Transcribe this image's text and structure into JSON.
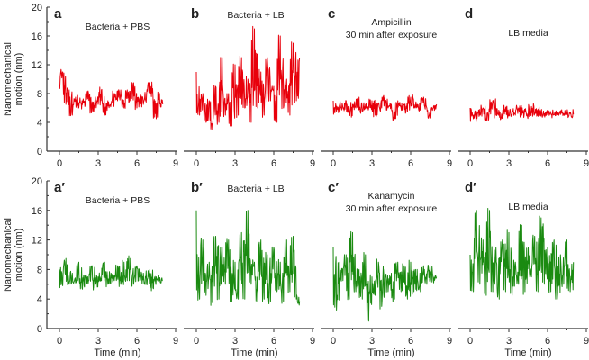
{
  "chart_data": [
    {
      "type": "line",
      "panel_label": "a",
      "title": "Bacteria + PBS",
      "color": "#e8000b",
      "xlim": [
        0,
        9
      ],
      "ylim": [
        0,
        20
      ],
      "xticks": [
        "0",
        "3",
        "6",
        "9"
      ],
      "yticks": [
        "0",
        "4",
        "8",
        "12",
        "16",
        "20"
      ],
      "ylabel": [
        "Nanomechanical",
        "motion (nm)"
      ],
      "xlabel": "",
      "x_step": 0.25,
      "values": [
        9,
        11,
        6.5,
        8.5,
        5,
        7.5,
        6,
        7,
        6.5,
        8,
        5.5,
        7,
        6.5,
        8.5,
        5,
        7,
        6.5,
        8,
        7,
        8.5,
        6,
        8.5,
        7,
        9.5,
        6,
        7.5,
        6.5,
        8,
        9.5,
        7.5,
        4.5,
        8,
        6.5
      ]
    },
    {
      "type": "line",
      "panel_label": "b",
      "title": "Bacteria + LB",
      "color": "#e8000b",
      "xlim": [
        0,
        9
      ],
      "ylim": [
        0,
        20
      ],
      "xticks": [
        "0",
        "3",
        "6",
        "9"
      ],
      "xlabel": "",
      "x_step": 0.25,
      "values": [
        11,
        5,
        8,
        4,
        7,
        3,
        9,
        4,
        13,
        5,
        8,
        3.5,
        12,
        5,
        13,
        6,
        10,
        4,
        17,
        6,
        11,
        5,
        13,
        7,
        9,
        4,
        16,
        6,
        10,
        5,
        15,
        7,
        13
      ]
    },
    {
      "type": "line",
      "panel_label": "c",
      "title": "Ampicillin\n30 min after exposure",
      "title_lines": [
        "Ampicillin",
        "30 min after exposure"
      ],
      "color": "#e8000b",
      "xlim": [
        0,
        9
      ],
      "ylim": [
        0,
        20
      ],
      "xticks": [
        "0",
        "3",
        "6",
        "9"
      ],
      "xlabel": "",
      "x_step": 0.25,
      "values": [
        7,
        5.5,
        6.5,
        6,
        7,
        5,
        6.5,
        6,
        7.5,
        5.5,
        6.5,
        6,
        7,
        5,
        6.5,
        6,
        7.5,
        6,
        6.5,
        4.5,
        7,
        6,
        6.5,
        5.5,
        7.5,
        6,
        6.5,
        6,
        7.5,
        6,
        4.5,
        6,
        6.5
      ]
    },
    {
      "type": "line",
      "panel_label": "d",
      "title": "LB media",
      "color": "#e8000b",
      "xlim": [
        0,
        9
      ],
      "ylim": [
        0,
        20
      ],
      "xticks": [
        "0",
        "3",
        "6",
        "9"
      ],
      "xlabel": "",
      "x_step": 0.25,
      "values": [
        6,
        4.5,
        5.5,
        5,
        6,
        4.5,
        5.5,
        7,
        5,
        5.5,
        4.8,
        6,
        5,
        5.5,
        5,
        6,
        5,
        5.5,
        5,
        6.2,
        5.2,
        5.8,
        5.3,
        5.2,
        5.3,
        5.2,
        5.1,
        5.2,
        5.1,
        5.2,
        5.1,
        5.2,
        5.1
      ]
    },
    {
      "type": "line",
      "panel_label": "a′",
      "title": "Bacteria + PBS",
      "color": "#1a8a10",
      "xlim": [
        0,
        9
      ],
      "ylim": [
        0,
        20
      ],
      "xticks": [
        "0",
        "3",
        "6",
        "9"
      ],
      "yticks": [
        "0",
        "4",
        "8",
        "12",
        "16",
        "20"
      ],
      "ylabel": [
        "Nanomechanical",
        "motion (nm)"
      ],
      "xlabel": "Time (min)",
      "x_step": 0.25,
      "values": [
        8,
        5.8,
        9.5,
        6,
        7.5,
        6.2,
        9,
        5.5,
        7,
        6.5,
        8.5,
        5.5,
        7,
        6.5,
        9,
        6,
        7.5,
        6.5,
        8.5,
        6,
        9,
        6.5,
        9.5,
        6,
        8.5,
        6.5,
        7.5,
        6,
        8,
        5.5,
        7,
        6.5,
        6.5
      ]
    },
    {
      "type": "line",
      "panel_label": "b′",
      "title": "Bacteria + LB",
      "color": "#1a8a10",
      "xlim": [
        0,
        9
      ],
      "ylim": [
        0,
        20
      ],
      "xticks": [
        "0",
        "3",
        "6",
        "9"
      ],
      "xlabel": "Time (min)",
      "x_step": 0.25,
      "values": [
        16,
        4,
        12,
        4.5,
        9,
        3.5,
        12.5,
        4,
        11,
        6,
        12,
        3.7,
        9,
        4,
        13,
        4,
        16,
        6,
        9,
        3.7,
        12,
        4,
        10,
        3.7,
        11,
        5,
        9,
        3.7,
        12,
        5,
        12.5,
        4,
        3.7
      ]
    },
    {
      "type": "line",
      "panel_label": "c′",
      "title": "Kanamycin\n30 min after exposure",
      "title_lines": [
        "Kanamycin",
        "30 min after exposure"
      ],
      "color": "#1a8a10",
      "xlim": [
        0,
        9
      ],
      "ylim": [
        0,
        20
      ],
      "xticks": [
        "0",
        "3",
        "6",
        "9"
      ],
      "xlabel": "Time (min)",
      "x_step": 0.25,
      "values": [
        11,
        2.5,
        9,
        6.5,
        10,
        4,
        13,
        5,
        8,
        4,
        10,
        1,
        7,
        4.5,
        9,
        3,
        8,
        5,
        7.5,
        4,
        9,
        5,
        8.5,
        4,
        9,
        5,
        8,
        5,
        8.5,
        6,
        8.5,
        6.5,
        7
      ]
    },
    {
      "type": "line",
      "panel_label": "d′",
      "title": "LB media",
      "color": "#1a8a10",
      "xlim": [
        0,
        9
      ],
      "ylim": [
        0,
        20
      ],
      "xticks": [
        "0",
        "3",
        "6",
        "9"
      ],
      "xlabel": "Time (min)",
      "x_step": 0.25,
      "values": [
        10,
        5,
        16,
        6,
        12,
        4.5,
        16,
        5,
        11,
        4,
        12,
        5,
        13,
        4.5,
        9,
        6,
        14,
        5,
        11,
        7,
        12.5,
        5,
        15,
        6,
        11,
        5,
        12,
        4,
        10,
        6,
        12,
        5,
        9
      ]
    }
  ]
}
